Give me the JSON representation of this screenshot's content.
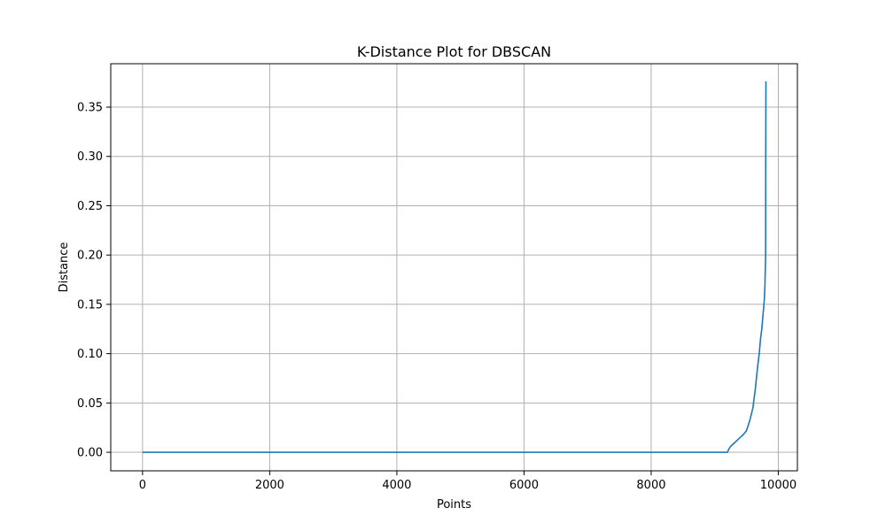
{
  "chart_data": {
    "type": "line",
    "title": "K-Distance Plot for DBSCAN",
    "xlabel": "Points",
    "ylabel": "Distance",
    "xlim": [
      -500,
      10300
    ],
    "ylim": [
      -0.0188,
      0.394
    ],
    "xticks": [
      0,
      2000,
      4000,
      6000,
      8000,
      10000
    ],
    "xtick_labels": [
      "0",
      "2000",
      "4000",
      "6000",
      "8000",
      "10000"
    ],
    "yticks": [
      0.0,
      0.05,
      0.1,
      0.15,
      0.2,
      0.25,
      0.3,
      0.35
    ],
    "ytick_labels": [
      "0.00",
      "0.05",
      "0.10",
      "0.15",
      "0.20",
      "0.25",
      "0.30",
      "0.35"
    ],
    "grid": true,
    "series": [
      {
        "color": "#1f77b4",
        "x": [
          0,
          9200,
          9220,
          9250,
          9300,
          9350,
          9400,
          9450,
          9500,
          9550,
          9600,
          9620,
          9640,
          9660,
          9680,
          9700,
          9720,
          9740,
          9760,
          9780,
          9790,
          9800,
          9802,
          9805
        ],
        "y": [
          0.0,
          0.0,
          0.003,
          0.006,
          0.009,
          0.012,
          0.015,
          0.018,
          0.022,
          0.032,
          0.045,
          0.055,
          0.065,
          0.078,
          0.09,
          0.1,
          0.115,
          0.125,
          0.14,
          0.155,
          0.17,
          0.2,
          0.3,
          0.376
        ]
      }
    ]
  }
}
